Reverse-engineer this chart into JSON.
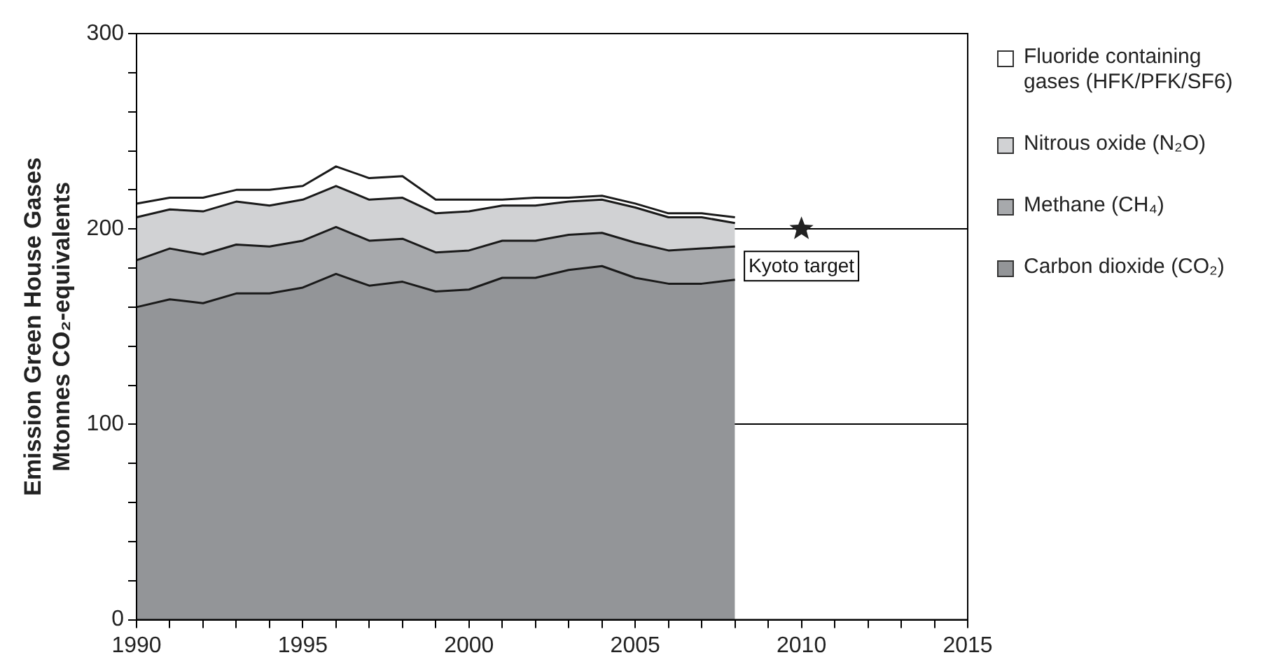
{
  "chart_data": {
    "type": "area",
    "stacked": true,
    "ylabel": "Emission Green House Gases\nMtonnes CO₂-equivalents",
    "x": [
      1990,
      1991,
      1992,
      1993,
      1994,
      1995,
      1996,
      1997,
      1998,
      1999,
      2000,
      2001,
      2002,
      2003,
      2004,
      2005,
      2006,
      2007,
      2008
    ],
    "series": [
      {
        "name": "Carbon dioxide (CO₂)",
        "color": "#939598",
        "values": [
          160,
          164,
          162,
          167,
          167,
          170,
          177,
          171,
          173,
          168,
          169,
          175,
          175,
          179,
          181,
          175,
          172,
          172,
          174
        ]
      },
      {
        "name": "Methane (CH₄)",
        "color": "#a7a9ac",
        "values": [
          24,
          26,
          25,
          25,
          24,
          24,
          24,
          23,
          22,
          20,
          20,
          19,
          19,
          18,
          17,
          18,
          17,
          18,
          17
        ]
      },
      {
        "name": "Nitrous oxide (N₂O)",
        "color": "#d1d2d4",
        "values": [
          22,
          20,
          22,
          22,
          21,
          21,
          21,
          21,
          21,
          20,
          20,
          18,
          18,
          17,
          17,
          18,
          17,
          16,
          12
        ]
      },
      {
        "name": "Fluoride containing gases (HFK/PFK/SF6)",
        "color": "#ffffff",
        "values": [
          7,
          6,
          7,
          6,
          8,
          7,
          10,
          11,
          11,
          7,
          6,
          3,
          4,
          2,
          2,
          2,
          2,
          2,
          3
        ]
      },
      {
        "type": "scatter",
        "x": [
          2010
        ],
        "values": [
          200
        ],
        "color": "#222222",
        "marker": "star"
      }
    ],
    "xlim": [
      1990,
      2015
    ],
    "xticks": [
      1990,
      {
        "value": 1991,
        "label": null
      },
      {
        "value": 1992,
        "label": null
      },
      {
        "value": 1993,
        "label": null
      },
      {
        "value": 1994,
        "label": null
      },
      1995,
      {
        "value": 1996,
        "label": null
      },
      {
        "value": 1997,
        "label": null
      },
      {
        "value": 1998,
        "label": null
      },
      {
        "value": 1999,
        "label": null
      },
      2000,
      {
        "value": 2001,
        "label": null
      },
      {
        "value": 2002,
        "label": null
      },
      {
        "value": 2003,
        "label": null
      },
      {
        "value": 2004,
        "label": null
      },
      2005,
      {
        "value": 2006,
        "label": null
      },
      {
        "value": 2007,
        "label": null
      },
      {
        "value": 2008,
        "label": null
      },
      {
        "value": 2009,
        "label": null
      },
      2010,
      {
        "value": 2011,
        "label": null
      },
      {
        "value": 2012,
        "label": null
      },
      {
        "value": 2013,
        "label": null
      },
      {
        "value": 2014,
        "label": null
      },
      2015
    ],
    "ylim": [
      0,
      300
    ],
    "yticks": [
      0,
      {
        "value": 20,
        "label": null
      },
      {
        "value": 40,
        "label": null
      },
      {
        "value": 60,
        "label": null
      },
      {
        "value": 80,
        "label": null
      },
      100,
      {
        "value": 120,
        "label": null
      },
      {
        "value": 140,
        "label": null
      },
      {
        "value": 160,
        "label": null
      },
      {
        "value": 180,
        "label": null
      },
      200,
      {
        "value": 220,
        "label": null
      },
      {
        "value": 240,
        "label": null
      },
      {
        "value": 260,
        "label": null
      },
      {
        "value": 280,
        "label": null
      },
      300
    ],
    "grid": "y",
    "legend": "right",
    "annotations": [
      {
        "text": "Kyoto target",
        "x": 2010,
        "y": 200
      }
    ]
  }
}
